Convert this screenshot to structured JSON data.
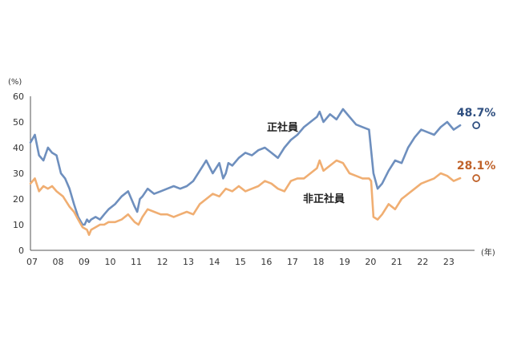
{
  "chart_data": {
    "type": "line",
    "y_unit": "(%)",
    "x_unit": "(年)",
    "ylim": [
      0,
      60
    ],
    "y_ticks": [
      0,
      10,
      20,
      30,
      40,
      50,
      60
    ],
    "x_ticks": [
      "07",
      "08",
      "09",
      "10",
      "11",
      "12",
      "13",
      "14",
      "15",
      "16",
      "17",
      "18",
      "19",
      "20",
      "21",
      "22",
      "23"
    ],
    "xlim": [
      2007.0,
      2024.05
    ],
    "grid": false,
    "series": [
      {
        "name": "正社員",
        "color": "#6e8fbe",
        "end_label": "48.7%",
        "end_label_color": "#2f4f80",
        "x": [
          2007.0,
          2007.17,
          2007.33,
          2007.5,
          2007.67,
          2007.83,
          2008.0,
          2008.17,
          2008.33,
          2008.5,
          2008.67,
          2008.83,
          2009.0,
          2009.08,
          2009.17,
          2009.25,
          2009.33,
          2009.5,
          2009.67,
          2009.83,
          2010.0,
          2010.25,
          2010.5,
          2010.75,
          2011.0,
          2011.1,
          2011.2,
          2011.3,
          2011.5,
          2011.75,
          2012.0,
          2012.25,
          2012.5,
          2012.75,
          2013.0,
          2013.25,
          2013.5,
          2013.75,
          2014.0,
          2014.25,
          2014.4,
          2014.5,
          2014.6,
          2014.75,
          2015.0,
          2015.25,
          2015.5,
          2015.75,
          2016.0,
          2016.25,
          2016.5,
          2016.75,
          2017.0,
          2017.25,
          2017.5,
          2017.75,
          2018.0,
          2018.1,
          2018.25,
          2018.5,
          2018.75,
          2019.0,
          2019.25,
          2019.5,
          2019.75,
          2020.0,
          2020.17,
          2020.33,
          2020.5,
          2020.75,
          2021.0,
          2021.25,
          2021.5,
          2021.75,
          2022.0,
          2022.25,
          2022.5,
          2022.75,
          2023.0,
          2023.25,
          2023.5
        ],
        "values": [
          42,
          45,
          37,
          35,
          40,
          38,
          37,
          30,
          28,
          24,
          18,
          13,
          10,
          10,
          12,
          11,
          12,
          13,
          12,
          14,
          16,
          18,
          21,
          23,
          17,
          15,
          20,
          21,
          24,
          22,
          23,
          24,
          25,
          24,
          25,
          27,
          31,
          35,
          30,
          34,
          28,
          30,
          34,
          33,
          36,
          38,
          37,
          39,
          40,
          38,
          36,
          40,
          43,
          45,
          48,
          50,
          52,
          54,
          50,
          53,
          51,
          55,
          52,
          49,
          48,
          47,
          30,
          24,
          26,
          31,
          35,
          34,
          40,
          44,
          47,
          46,
          45,
          48,
          50,
          47,
          48.7
        ]
      },
      {
        "name": "非正社員",
        "color": "#f0ae72",
        "end_label": "28.1%",
        "end_label_color": "#c0622a",
        "x": [
          2007.0,
          2007.17,
          2007.33,
          2007.5,
          2007.67,
          2007.83,
          2008.0,
          2008.25,
          2008.5,
          2008.67,
          2008.83,
          2009.0,
          2009.17,
          2009.25,
          2009.33,
          2009.5,
          2009.67,
          2009.83,
          2010.0,
          2010.25,
          2010.5,
          2010.75,
          2011.0,
          2011.15,
          2011.3,
          2011.5,
          2011.75,
          2012.0,
          2012.25,
          2012.5,
          2012.75,
          2013.0,
          2013.25,
          2013.5,
          2013.75,
          2014.0,
          2014.25,
          2014.5,
          2014.75,
          2015.0,
          2015.25,
          2015.5,
          2015.75,
          2016.0,
          2016.25,
          2016.5,
          2016.75,
          2017.0,
          2017.25,
          2017.5,
          2017.75,
          2018.0,
          2018.1,
          2018.25,
          2018.5,
          2018.75,
          2019.0,
          2019.25,
          2019.5,
          2019.75,
          2020.0,
          2020.08,
          2020.17,
          2020.33,
          2020.5,
          2020.75,
          2021.0,
          2021.25,
          2021.5,
          2021.75,
          2022.0,
          2022.25,
          2022.5,
          2022.75,
          2023.0,
          2023.25,
          2023.5
        ],
        "values": [
          26,
          28,
          23,
          25,
          24,
          25,
          23,
          21,
          17,
          15,
          12,
          9,
          8,
          6,
          8,
          9,
          10,
          10,
          11,
          11,
          12,
          14,
          11,
          10,
          13,
          16,
          15,
          14,
          14,
          13,
          14,
          15,
          14,
          18,
          20,
          22,
          21,
          24,
          23,
          25,
          23,
          24,
          25,
          27,
          26,
          24,
          23,
          27,
          28,
          28,
          30,
          32,
          35,
          31,
          33,
          35,
          34,
          30,
          29,
          28,
          28,
          27,
          13,
          12,
          14,
          18,
          16,
          20,
          22,
          24,
          26,
          27,
          28,
          30,
          29,
          27,
          28.1
        ]
      }
    ],
    "series_labels": [
      "正社員",
      "非正社員"
    ]
  }
}
